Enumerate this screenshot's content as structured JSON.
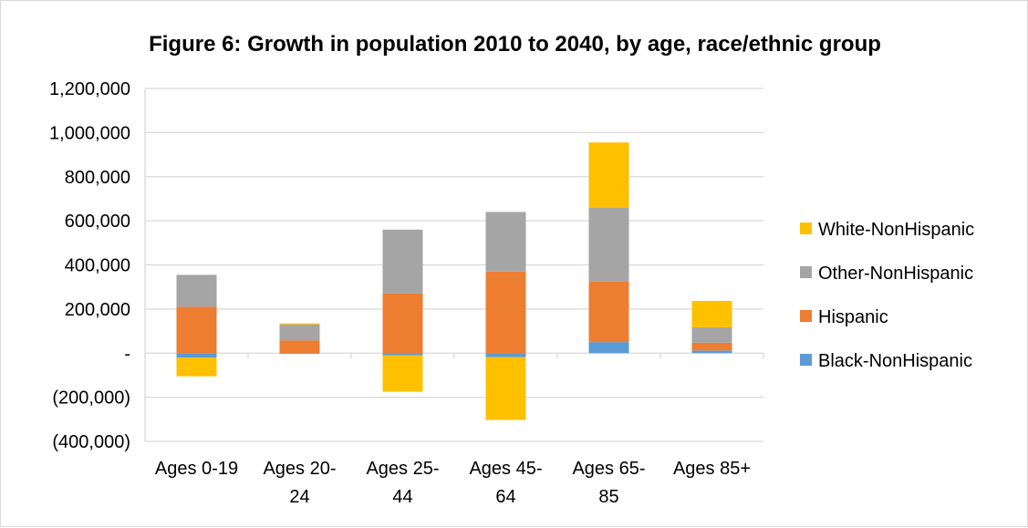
{
  "chart_data": {
    "type": "bar",
    "stacked": true,
    "title": "Figure 6: Growth in population 2010 to 2040, by age, race/ethnic group",
    "categories": [
      [
        "Ages 0-19"
      ],
      [
        "Ages 20-",
        "24"
      ],
      [
        "Ages 25-",
        "44"
      ],
      [
        "Ages 45-",
        "64"
      ],
      [
        "Ages 65-",
        "85"
      ],
      [
        "Ages 85+"
      ]
    ],
    "series": [
      {
        "name": "Black-NonHispanic",
        "color": "#5B9BD5",
        "values": [
          -20000,
          -3000,
          -10000,
          -18000,
          50000,
          12000
        ]
      },
      {
        "name": "Hispanic",
        "color": "#ED7D31",
        "values": [
          210000,
          58000,
          270000,
          370000,
          275000,
          35000
        ]
      },
      {
        "name": "Other-NonHispanic",
        "color": "#A5A5A5",
        "values": [
          145000,
          72000,
          290000,
          270000,
          335000,
          70000
        ]
      },
      {
        "name": "White-NonHispanic",
        "color": "#FFC000",
        "values": [
          -85000,
          5000,
          -165000,
          -285000,
          295000,
          120000
        ]
      }
    ],
    "legend_order": [
      "White-NonHispanic",
      "Other-NonHispanic",
      "Hispanic",
      "Black-NonHispanic"
    ],
    "legend_position": "right",
    "ylim": [
      -400000,
      1200000
    ],
    "yticks": [
      {
        "value": 1200000,
        "label": "1,200,000"
      },
      {
        "value": 1000000,
        "label": "1,000,000"
      },
      {
        "value": 800000,
        "label": "800,000"
      },
      {
        "value": 600000,
        "label": "600,000"
      },
      {
        "value": 400000,
        "label": "400,000"
      },
      {
        "value": 200000,
        "label": "200,000"
      },
      {
        "value": 0,
        "label": "-"
      },
      {
        "value": -200000,
        "label": "(200,000)"
      },
      {
        "value": -400000,
        "label": "(400,000)"
      }
    ],
    "grid": true
  }
}
